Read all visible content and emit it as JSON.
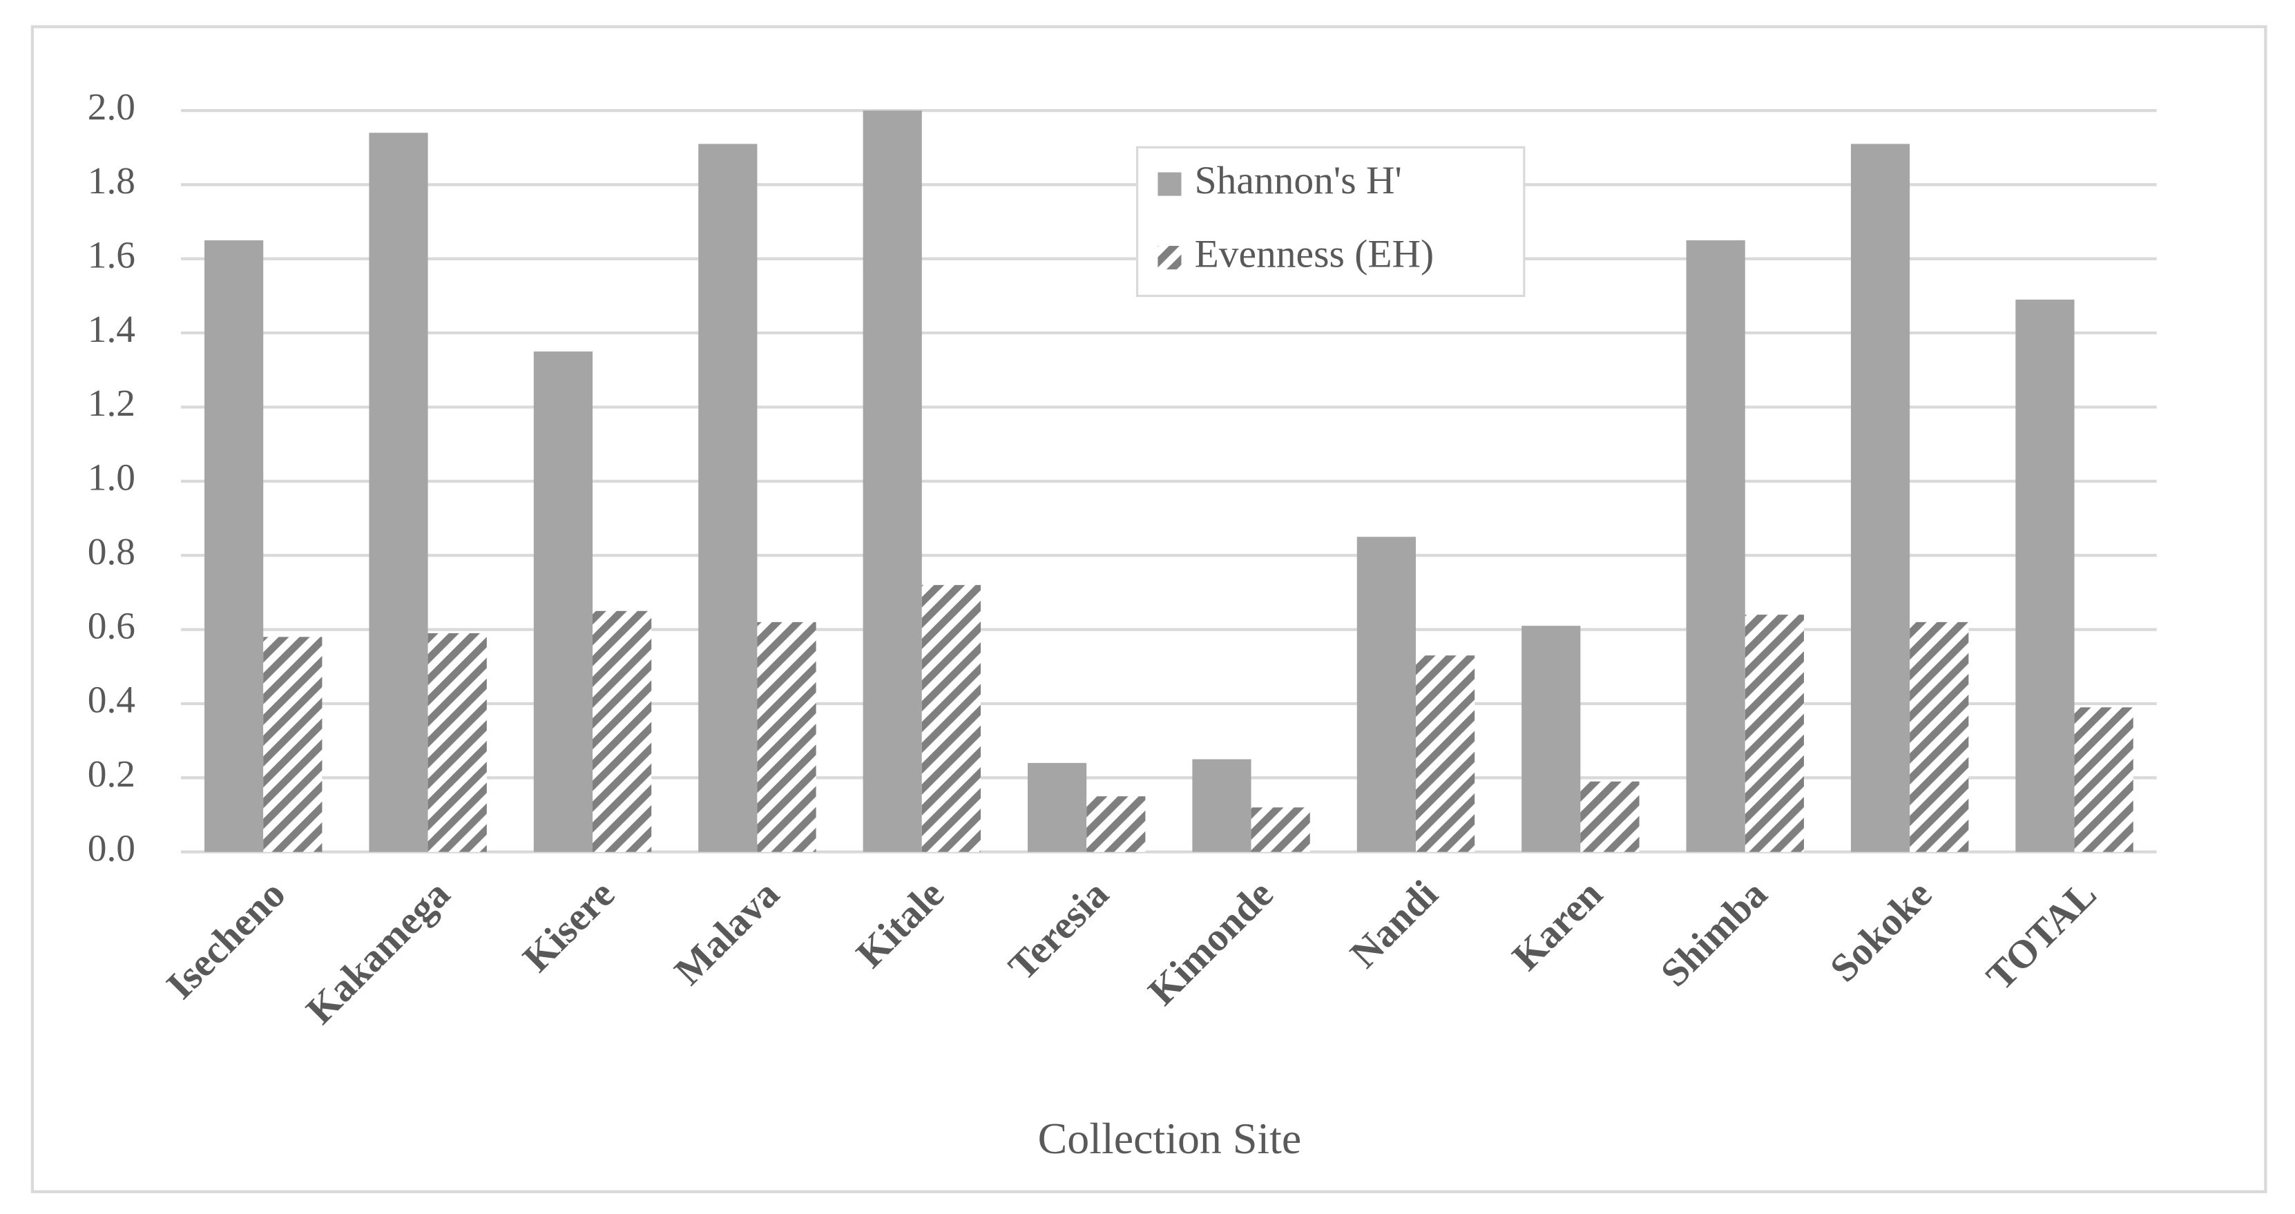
{
  "chart_data": {
    "type": "bar",
    "x_label": "Collection Site",
    "categories": [
      "Isecheno",
      "Kakamega",
      "Kisere",
      "Malava",
      "Kitale",
      "Teresia",
      "Kimonde",
      "Nandi",
      "Karen",
      "Shimba",
      "Sokoke",
      "TOTAL"
    ],
    "series": [
      {
        "name": "Shannon's H'",
        "color": "#a5a5a5",
        "values": [
          1.65,
          1.94,
          1.35,
          1.91,
          2.0,
          0.24,
          0.25,
          0.85,
          0.61,
          1.65,
          1.91,
          1.49
        ]
      },
      {
        "name": "Evenness (EH)",
        "color": "#7f7f7f",
        "pattern": "hatch",
        "values": [
          0.58,
          0.59,
          0.65,
          0.62,
          0.72,
          0.15,
          0.12,
          0.53,
          0.19,
          0.64,
          0.62,
          0.39
        ]
      }
    ],
    "ylim": [
      0,
      2.0
    ],
    "yticks": [
      {
        "value": 0,
        "label": "0.0"
      },
      0.2,
      0.4,
      0.6,
      0.8,
      {
        "value": 1,
        "label": "1.0"
      },
      1.2,
      1.4,
      1.6,
      1.8,
      {
        "value": 2,
        "label": "2.0"
      }
    ],
    "grid": true
  }
}
